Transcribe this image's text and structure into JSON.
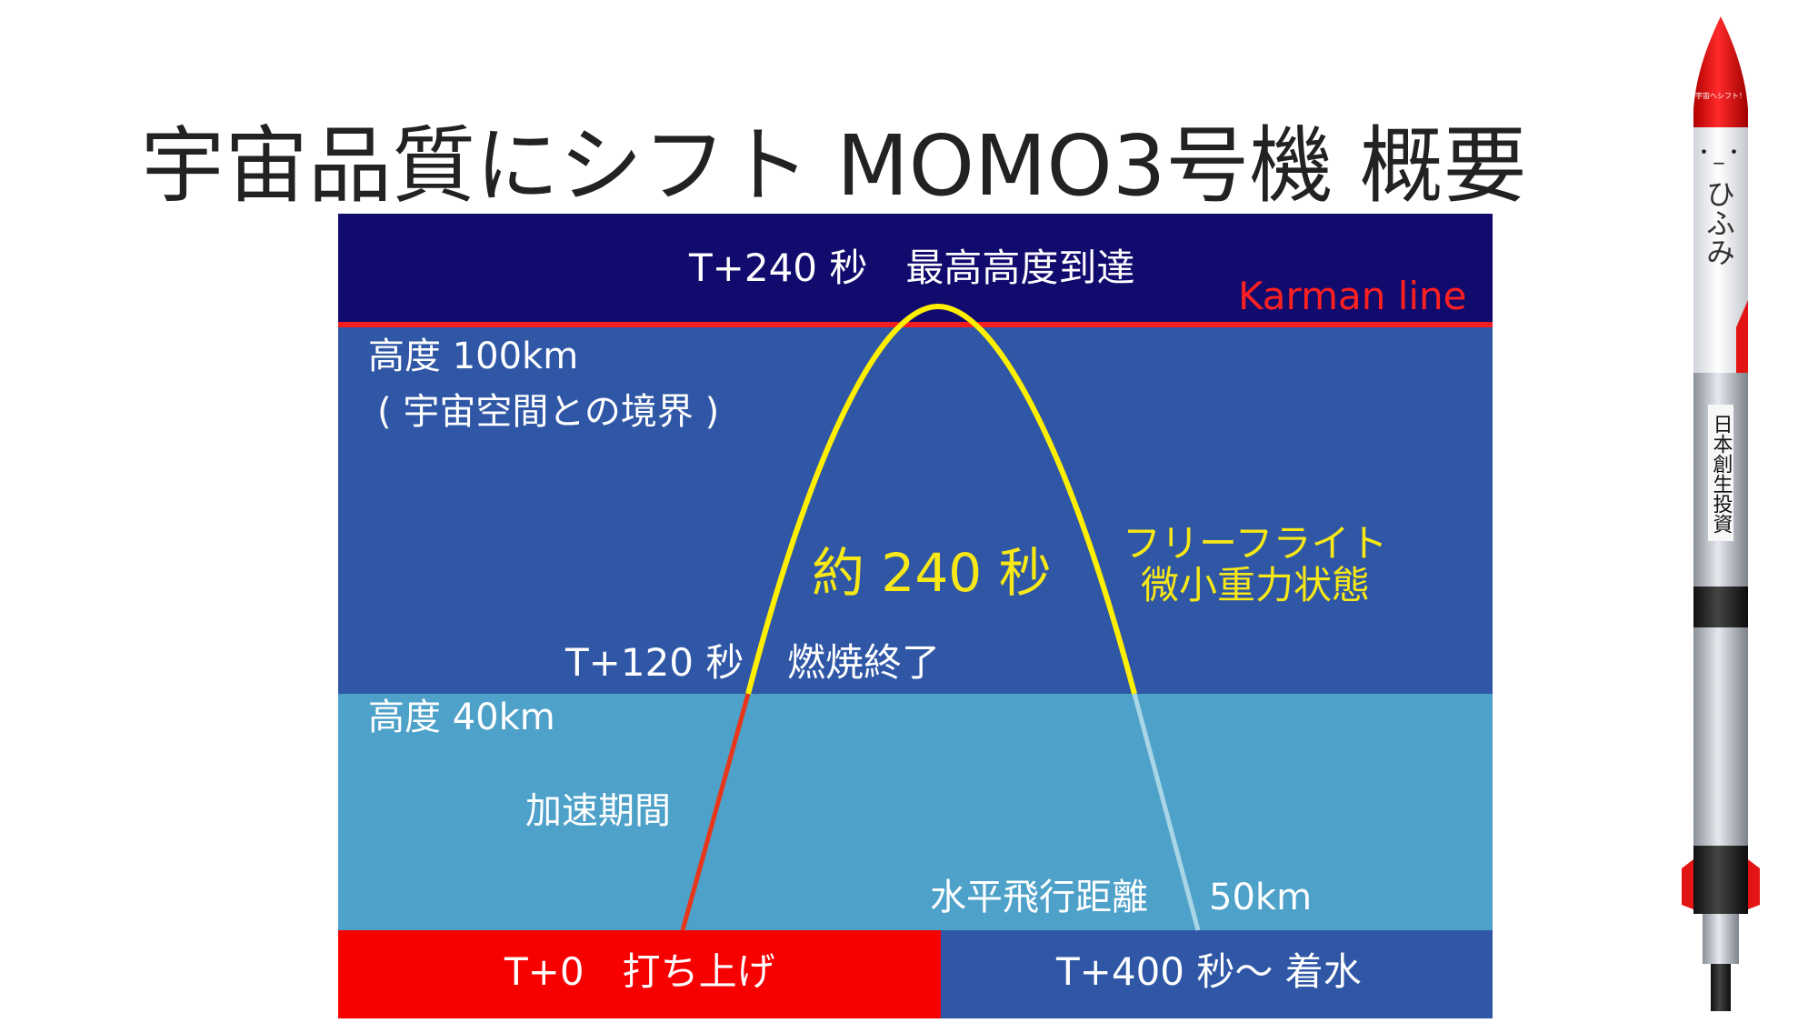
{
  "title": "宇宙品質にシフト MOMO3号機 概要",
  "colors": {
    "space": "#120b6e",
    "upper": "#2f57a6",
    "lower": "#4ea1c9",
    "karman_line": "#f21d1d",
    "launch_zone": "#f60000",
    "splash_zone": "#2f57a6",
    "trajectory_freeflight": "#ffef00",
    "trajectory_powered": "#e8361a",
    "trajectory_descent": "#a9d6e6",
    "label_yellow": "#f7e816",
    "label_white": "#ffffff",
    "label_red": "#ff2020"
  },
  "labels": {
    "apogee": "T+240 秒　最高高度到達",
    "karman": "Karman  line",
    "alt100_line1": "高度 100km",
    "alt100_line2": "( 宇宙空間との境界 )",
    "freeflight_duration": "約 240 秒",
    "freeflight_line1": "フリーフライト",
    "freeflight_line2": "微小重力状態",
    "burnout_time": "T+120 秒",
    "burnout": "燃焼終了",
    "alt40": "高度 40km",
    "acceleration": "加速期間",
    "horizontal_distance": "水平飛行距離",
    "horizontal_distance_value": "50km",
    "launch": "T+0　打ち上げ",
    "splashdown": "T+400 秒〜 着水"
  },
  "rocket": {
    "nose_text": "宇宙へシフト！",
    "name": "ひふみ",
    "sponsor": "日本創生投資",
    "face": "・_・"
  }
}
